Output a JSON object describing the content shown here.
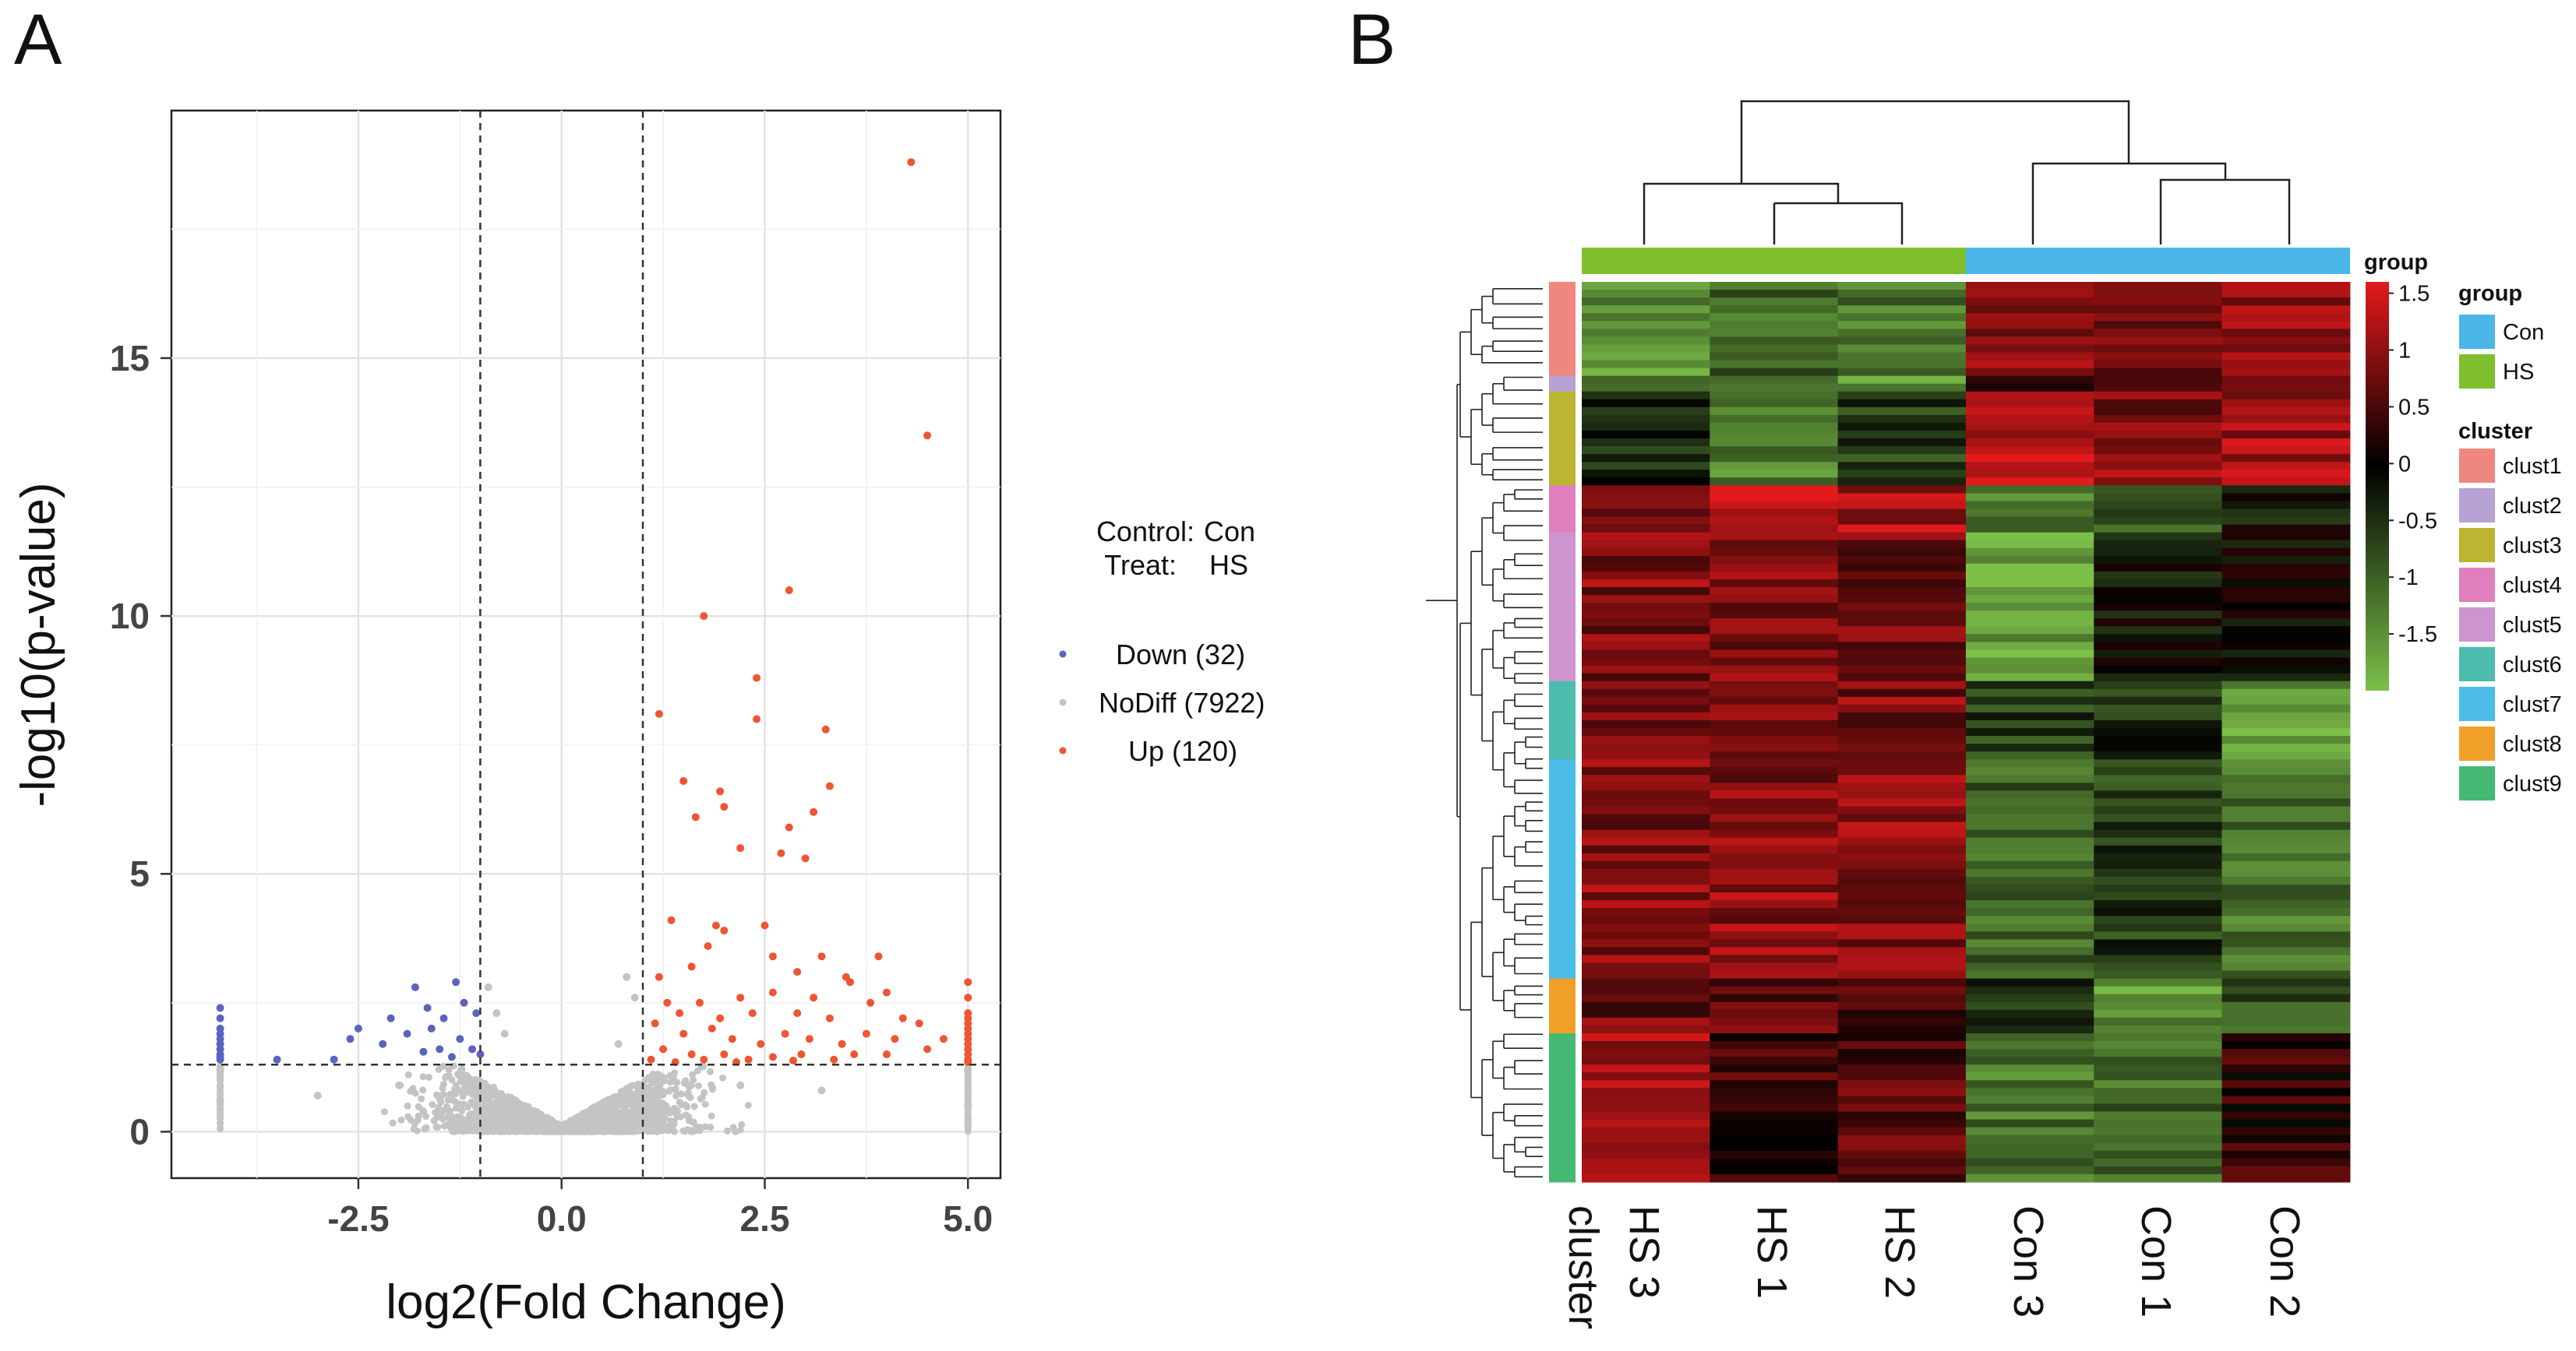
{
  "panels": {
    "a_label": "A",
    "b_label": "B"
  },
  "chart_data": [
    {
      "type": "scatter",
      "title": "",
      "xlabel": "log2(Fold Change)",
      "ylabel": "-log10(p-value)",
      "xlim": [
        -4.8,
        5.4
      ],
      "ylim": [
        -0.9,
        19.8
      ],
      "x_ticks": [
        -2.5,
        0.0,
        2.5,
        5.0
      ],
      "x_tick_labels": [
        "-2.5",
        "0.0",
        "2.5",
        "5.0"
      ],
      "y_ticks": [
        0,
        5,
        10,
        15
      ],
      "y_tick_labels": [
        "0",
        "5",
        "10",
        "15"
      ],
      "grid": true,
      "thresholds": {
        "fc_lines": [
          -1,
          1
        ],
        "p_line": 1.3
      },
      "legend": {
        "placement": "right",
        "control_label": "Control:",
        "control_value": "Con",
        "treat_label": "Treat:",
        "treat_value": "HS",
        "entries": [
          {
            "name": "Down (32)",
            "color": "#5b63c0"
          },
          {
            "name": "NoDiff (7922)",
            "color": "#c4c4c4"
          },
          {
            "name": "Up (120)",
            "color": "#ee5530"
          }
        ]
      },
      "series": [
        {
          "name": "Up",
          "color": "#ee5530",
          "points": [
            [
              4.3,
              18.8
            ],
            [
              4.5,
              13.5
            ],
            [
              2.8,
              10.5
            ],
            [
              1.75,
              10.0
            ],
            [
              2.4,
              8.8
            ],
            [
              1.2,
              8.1
            ],
            [
              2.4,
              8.0
            ],
            [
              3.25,
              7.8
            ],
            [
              1.5,
              6.8
            ],
            [
              1.95,
              6.6
            ],
            [
              3.3,
              6.7
            ],
            [
              2.0,
              6.3
            ],
            [
              1.65,
              6.1
            ],
            [
              3.1,
              6.2
            ],
            [
              2.8,
              5.9
            ],
            [
              2.2,
              5.5
            ],
            [
              2.7,
              5.4
            ],
            [
              3.0,
              5.3
            ],
            [
              1.9,
              4.0
            ],
            [
              2.5,
              4.0
            ],
            [
              1.35,
              4.1
            ],
            [
              2.0,
              3.9
            ],
            [
              1.8,
              3.6
            ],
            [
              2.6,
              3.4
            ],
            [
              3.2,
              3.4
            ],
            [
              3.9,
              3.4
            ],
            [
              1.6,
              3.2
            ],
            [
              2.9,
              3.1
            ],
            [
              1.2,
              3.0
            ],
            [
              3.5,
              3.0
            ],
            [
              1.3,
              2.5
            ],
            [
              1.7,
              2.5
            ],
            [
              2.2,
              2.6
            ],
            [
              2.6,
              2.7
            ],
            [
              3.1,
              2.6
            ],
            [
              3.55,
              2.9
            ],
            [
              4.0,
              2.7
            ],
            [
              1.45,
              2.3
            ],
            [
              1.95,
              2.2
            ],
            [
              2.35,
              2.3
            ],
            [
              2.9,
              2.3
            ],
            [
              3.3,
              2.2
            ],
            [
              3.8,
              2.5
            ],
            [
              4.2,
              2.2
            ],
            [
              1.15,
              2.1
            ],
            [
              1.5,
              1.9
            ],
            [
              1.85,
              2.0
            ],
            [
              2.1,
              1.8
            ],
            [
              2.45,
              1.7
            ],
            [
              2.75,
              1.9
            ],
            [
              3.05,
              1.8
            ],
            [
              3.45,
              1.7
            ],
            [
              3.75,
              1.9
            ],
            [
              4.1,
              1.8
            ],
            [
              4.4,
              2.1
            ],
            [
              1.25,
              1.6
            ],
            [
              1.6,
              1.5
            ],
            [
              2.0,
              1.5
            ],
            [
              2.3,
              1.4
            ],
            [
              2.6,
              1.45
            ],
            [
              2.95,
              1.5
            ],
            [
              3.35,
              1.4
            ],
            [
              3.6,
              1.5
            ],
            [
              4.0,
              1.5
            ],
            [
              4.5,
              1.6
            ],
            [
              1.1,
              1.4
            ],
            [
              1.4,
              1.35
            ],
            [
              1.75,
              1.4
            ],
            [
              2.15,
              1.35
            ],
            [
              2.85,
              1.38
            ],
            [
              4.7,
              1.8
            ],
            [
              5.0,
              2.9
            ],
            [
              5.0,
              2.6
            ],
            [
              5.0,
              2.3
            ],
            [
              5.0,
              2.2
            ],
            [
              5.0,
              2.1
            ],
            [
              5.0,
              2.0
            ],
            [
              5.0,
              1.9
            ],
            [
              5.0,
              1.8
            ],
            [
              5.0,
              1.7
            ],
            [
              5.0,
              1.6
            ],
            [
              5.0,
              1.5
            ],
            [
              5.0,
              1.4
            ],
            [
              5.0,
              1.35
            ]
          ]
        },
        {
          "name": "Down",
          "color": "#5b63c0",
          "points": [
            [
              -1.8,
              2.8
            ],
            [
              -1.3,
              2.9
            ],
            [
              -1.65,
              2.4
            ],
            [
              -1.2,
              2.5
            ],
            [
              -1.45,
              2.2
            ],
            [
              -2.1,
              2.2
            ],
            [
              -1.05,
              2.3
            ],
            [
              -1.9,
              1.9
            ],
            [
              -2.5,
              2.0
            ],
            [
              -1.6,
              2.0
            ],
            [
              -1.25,
              1.8
            ],
            [
              -1.5,
              1.6
            ],
            [
              -2.2,
              1.7
            ],
            [
              -1.7,
              1.55
            ],
            [
              -1.1,
              1.6
            ],
            [
              -2.6,
              1.8
            ],
            [
              -3.5,
              1.4
            ],
            [
              -2.8,
              1.4
            ],
            [
              -1.35,
              1.45
            ],
            [
              -1.0,
              1.5
            ],
            [
              -4.2,
              2.4
            ],
            [
              -4.2,
              2.2
            ],
            [
              -4.2,
              2.0
            ],
            [
              -4.2,
              1.9
            ],
            [
              -4.2,
              1.8
            ],
            [
              -4.2,
              1.7
            ],
            [
              -4.2,
              1.6
            ],
            [
              -4.2,
              1.5
            ],
            [
              -4.2,
              1.45
            ],
            [
              -4.2,
              1.4
            ]
          ]
        },
        {
          "name": "NoDiff",
          "color": "#c4c4c4",
          "points": [
            [
              -0.6,
              0.3
            ],
            [
              0.5,
              0.25
            ],
            [
              -0.9,
              2.8
            ],
            [
              -0.8,
              2.3
            ],
            [
              0.8,
              3.0
            ],
            [
              0.9,
              2.6
            ],
            [
              -0.7,
              1.9
            ],
            [
              0.7,
              1.7
            ],
            [
              -4.2,
              1.2
            ],
            [
              -4.2,
              0.6
            ],
            [
              5.0,
              1.2
            ],
            [
              5.0,
              0.5
            ],
            [
              -3.0,
              0.7
            ],
            [
              3.2,
              0.8
            ],
            [
              -2.0,
              0.9
            ],
            [
              2.2,
              0.9
            ]
          ],
          "cloud": "dense cloud of ~7900 genes centered at x=0, y from 0 to ~1.3"
        }
      ]
    },
    {
      "type": "heatmap",
      "title": "",
      "columns": [
        "HS 3",
        "HS 1",
        "HS 2",
        "Con 3",
        "Con 1",
        "Con 2"
      ],
      "column_groups": [
        "HS",
        "HS",
        "HS",
        "Con",
        "Con",
        "Con"
      ],
      "row_annotation_label": "cluster",
      "color_scale": {
        "title": "group",
        "min": -2.0,
        "max": 1.6,
        "ticks": [
          1.5,
          1,
          0.5,
          0,
          -0.5,
          -1,
          -1.5
        ],
        "tick_labels": [
          "1.5",
          "1",
          "0.5",
          "0",
          "-0.5",
          "-1",
          "-1.5"
        ],
        "low_color": "#7cc04a",
        "mid_color": "#000000",
        "high_color": "#e31a1c"
      },
      "group_legend": {
        "title": "group",
        "items": [
          {
            "name": "Con",
            "color": "#4bb7e8"
          },
          {
            "name": "HS",
            "color": "#7fbf2e"
          }
        ]
      },
      "cluster_legend": {
        "title": "cluster",
        "items": [
          {
            "name": "clust1",
            "color": "#f0877f"
          },
          {
            "name": "clust2",
            "color": "#b7a2d4"
          },
          {
            "name": "clust3",
            "color": "#bcb531"
          },
          {
            "name": "clust4",
            "color": "#df7fbd"
          },
          {
            "name": "clust5",
            "color": "#cd94cf"
          },
          {
            "name": "clust6",
            "color": "#4bbcae"
          },
          {
            "name": "clust7",
            "color": "#4bbde8"
          },
          {
            "name": "clust8",
            "color": "#f0a028"
          },
          {
            "name": "clust9",
            "color": "#44b974"
          }
        ]
      },
      "row_blocks": [
        {
          "cluster": "clust1",
          "rows": 12,
          "values": [
            -1.5,
            -1.0,
            -1.2,
            0.9,
            0.9,
            1.0
          ]
        },
        {
          "cluster": "clust2",
          "rows": 2,
          "values": [
            -1.0,
            -1.4,
            -1.6,
            0.6,
            0.5,
            0.8
          ]
        },
        {
          "cluster": "clust3",
          "rows": 12,
          "values": [
            -0.4,
            -1.3,
            -0.6,
            1.3,
            0.9,
            1.1
          ]
        },
        {
          "cluster": "clust4",
          "rows": 6,
          "values": [
            0.9,
            1.4,
            1.2,
            -1.3,
            -0.8,
            -0.2
          ]
        },
        {
          "cluster": "clust5",
          "rows": 19,
          "values": [
            0.9,
            0.8,
            0.8,
            -1.7,
            -0.2,
            -0.1
          ]
        },
        {
          "cluster": "clust6",
          "rows": 10,
          "values": [
            0.9,
            0.9,
            0.9,
            -0.6,
            -0.5,
            -1.6
          ]
        },
        {
          "cluster": "clust7",
          "rows": 28,
          "values": [
            0.9,
            1.0,
            1.0,
            -1.0,
            -0.6,
            -1.2
          ]
        },
        {
          "cluster": "clust8",
          "rows": 7,
          "values": [
            0.8,
            0.7,
            0.6,
            -0.4,
            -1.5,
            -0.8
          ]
        },
        {
          "cluster": "clust9",
          "rows": 19,
          "values": [
            1.1,
            0.4,
            0.6,
            -1.2,
            -1.1,
            0.3
          ]
        }
      ]
    }
  ]
}
